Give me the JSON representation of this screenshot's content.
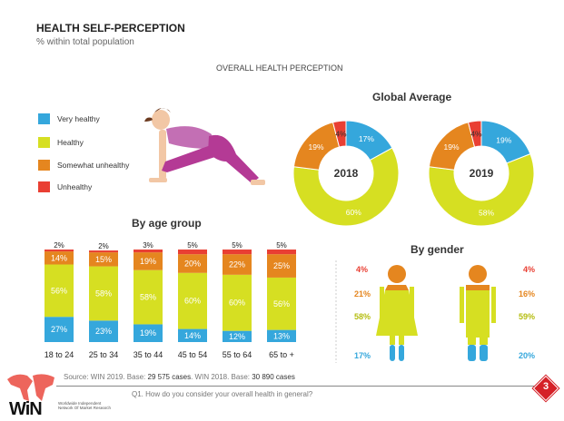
{
  "header": {
    "title": "HEALTH SELF-PERCEPTION",
    "subtitle": "% within total population",
    "section": "OVERALL HEALTH PERCEPTION"
  },
  "colors": {
    "very_healthy": "#35a7dc",
    "healthy": "#d6df22",
    "somewhat_unhealthy": "#e5861f",
    "unhealthy": "#e93f33"
  },
  "legend": [
    "Very healthy",
    "Healthy",
    "Somewhat unhealthy",
    "Unhealthy"
  ],
  "chart_data": [
    {
      "type": "pie",
      "title": "Global Average",
      "label": "2018",
      "categories": [
        "Very healthy",
        "Healthy",
        "Somewhat unhealthy",
        "Unhealthy"
      ],
      "values": [
        17,
        60,
        19,
        4
      ],
      "labels": [
        "17%",
        "60%",
        "19%",
        "4%"
      ]
    },
    {
      "type": "pie",
      "title": "Global Average",
      "label": "2019",
      "categories": [
        "Very healthy",
        "Healthy",
        "Somewhat unhealthy",
        "Unhealthy"
      ],
      "values": [
        19,
        58,
        19,
        4
      ],
      "labels": [
        "19%",
        "58%",
        "19%",
        "4%"
      ]
    },
    {
      "type": "bar",
      "stacked": true,
      "title": "By age group",
      "categories": [
        "18 to 24",
        "25 to 34",
        "35 to 44",
        "45 to 54",
        "55 to 64",
        "65 to +"
      ],
      "series": [
        {
          "name": "Very healthy",
          "values": [
            27,
            23,
            19,
            14,
            12,
            13
          ]
        },
        {
          "name": "Healthy",
          "values": [
            56,
            58,
            58,
            60,
            60,
            56
          ]
        },
        {
          "name": "Somewhat unhealthy",
          "values": [
            14,
            15,
            19,
            20,
            22,
            25
          ]
        },
        {
          "name": "Unhealthy",
          "values": [
            2,
            2,
            3,
            5,
            5,
            5
          ]
        }
      ],
      "labels": [
        [
          "27%",
          "23%",
          "19%",
          "14%",
          "12%",
          "13%"
        ],
        [
          "56%",
          "58%",
          "58%",
          "60%",
          "60%",
          "56%"
        ],
        [
          "14%",
          "15%",
          "19%",
          "20%",
          "22%",
          "25%"
        ],
        [
          "2%",
          "2%",
          "3%",
          "5%",
          "5%",
          "5%"
        ]
      ]
    },
    {
      "type": "bar",
      "title": "By gender",
      "categories": [
        "Female",
        "Male"
      ],
      "series": [
        {
          "name": "Unhealthy",
          "values": [
            4,
            4
          ],
          "labels": [
            "4%",
            "4%"
          ]
        },
        {
          "name": "Somewhat unhealthy",
          "values": [
            21,
            16
          ],
          "labels": [
            "21%",
            "16%"
          ]
        },
        {
          "name": "Healthy",
          "values": [
            58,
            59
          ],
          "labels": [
            "58%",
            "59%"
          ]
        },
        {
          "name": "Very healthy",
          "values": [
            17,
            20
          ],
          "labels": [
            "17%",
            "20%"
          ]
        }
      ]
    }
  ],
  "footer": {
    "source_prefix": "Source: WIN 2019. Base: ",
    "base2019": "29 575 cases",
    "mid": ". WIN 2018. Base: ",
    "base2018": "30 890 cases",
    "question": "Q1. How do you consider your overall health in general?",
    "page": "3",
    "logo": "WiN",
    "logo_sub": "Worldwide Independent Network Of Market Research"
  }
}
